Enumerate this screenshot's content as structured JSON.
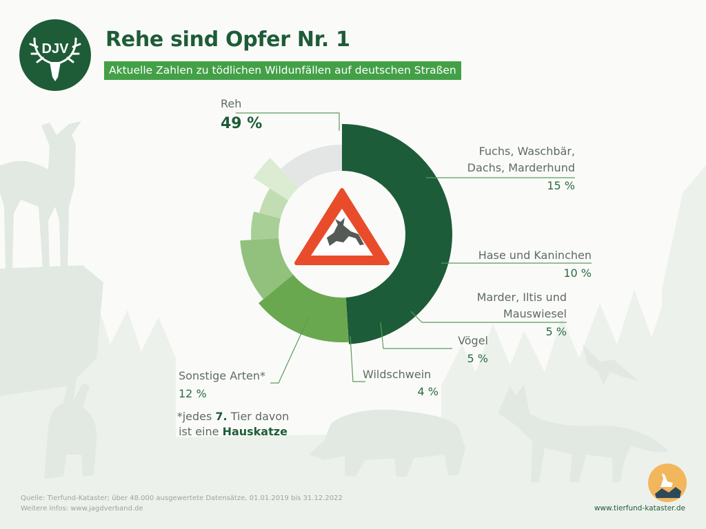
{
  "logo": {
    "text": "DJV",
    "icon": "deer-antler-icon",
    "color": "#1e5c38"
  },
  "title": "Rehe sind Opfer Nr. 1",
  "subtitle": "Aktuelle Zahlen zu tödlichen Wildunfällen auf deutschen Straßen",
  "center_icon": "deer-crossing-warning-sign-icon",
  "chart_data": {
    "type": "pie",
    "style": "donut",
    "unit": "%",
    "slices": [
      {
        "label": "Reh",
        "value": 49,
        "display": "49 %",
        "color": "#1d5c39"
      },
      {
        "label": "Fuchs, Waschbär, Dachs, Marderhund",
        "lines": [
          "Fuchs, Waschbär,",
          "Dachs, Marderhund"
        ],
        "value": 15,
        "display": "15 %",
        "color": "#6aa84f"
      },
      {
        "label": "Hase und Kaninchen",
        "lines": [
          "Hase und Kaninchen"
        ],
        "value": 10,
        "display": "10 %",
        "color": "#91c17d"
      },
      {
        "label": "Marder, Iltis und Mauswiesel",
        "lines": [
          "Marder, Iltis und",
          "Mauswiesel"
        ],
        "value": 5,
        "display": "5 %",
        "color": "#a8cf96"
      },
      {
        "label": "Vögel",
        "lines": [
          "Vögel"
        ],
        "value": 5,
        "display": "5 %",
        "color": "#c2ddb4"
      },
      {
        "label": "Wildschwein",
        "lines": [
          "Wildschwein"
        ],
        "value": 4,
        "display": "4 %",
        "color": "#dbecd2"
      },
      {
        "label": "Sonstige Arten*",
        "lines": [
          "Sonstige Arten*"
        ],
        "value": 12,
        "display": "12 %",
        "color": "#e4e6e5"
      }
    ]
  },
  "note": {
    "prefix": "*jedes ",
    "count": "7.",
    "middle": " Tier davon",
    "line2_prefix": "ist eine ",
    "animal": "Hauskatze"
  },
  "footer": {
    "source": "Quelle: Tierfund-Kataster; über 48.000 ausgewertete Datensätze, 01.01.2019 bis 31.12.2022",
    "info": "Weitere Infos: www.jagdverband.de",
    "url": "www.tierfund-kataster.de",
    "tfk_icon": "tierfund-kataster-deer-map-icon"
  }
}
